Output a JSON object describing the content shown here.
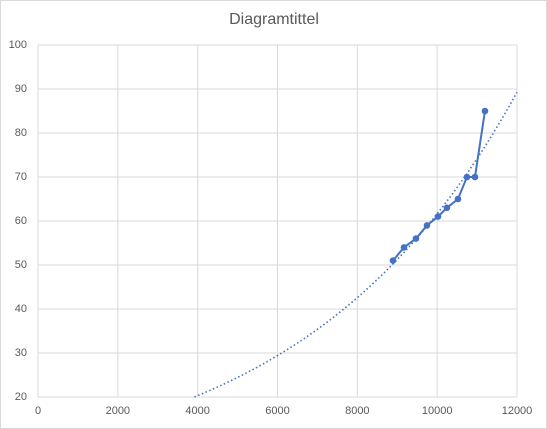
{
  "chart_data": {
    "type": "scatter",
    "title": "Diagramtittel",
    "series": [
      {
        "color": "#4472c4",
        "x": [
          8893,
          9168,
          9469,
          9745,
          10020,
          10245,
          10521,
          10746,
          10947,
          11197
        ],
        "values": [
          51,
          54,
          56,
          59,
          61,
          63,
          65,
          70,
          70,
          85
        ]
      }
    ],
    "trendline": "exponential",
    "xlim": [
      0,
      12000
    ],
    "xticks": [
      0,
      2000,
      4000,
      6000,
      8000,
      10000,
      12000
    ],
    "ylim": [
      20,
      100
    ],
    "yticks": [
      20,
      30,
      40,
      50,
      60,
      70,
      80,
      90,
      100
    ],
    "grid": true
  }
}
